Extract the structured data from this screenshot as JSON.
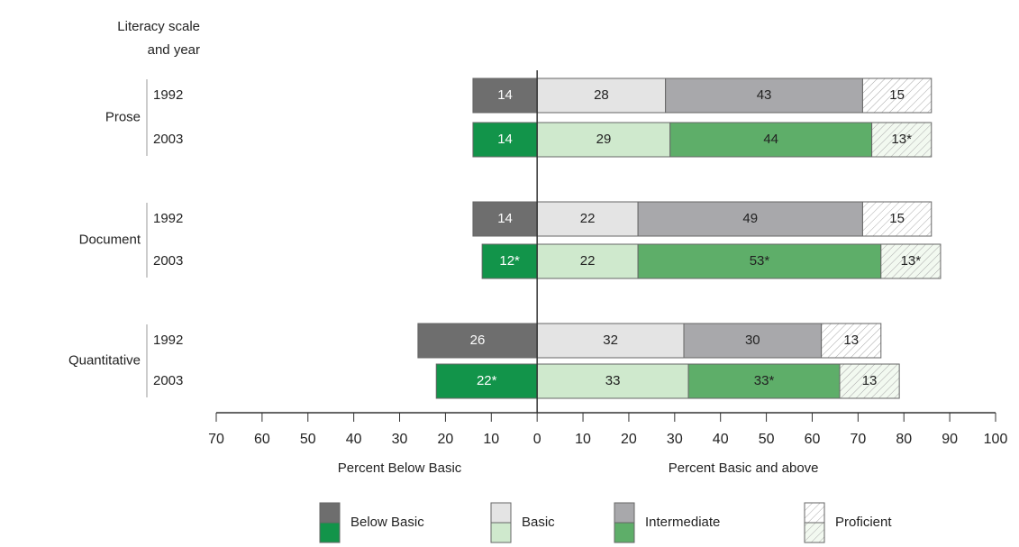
{
  "chart_data": {
    "type": "diverging-stacked-bar",
    "header": [
      "Literacy scale",
      "and year"
    ],
    "groups": [
      {
        "name": "Prose",
        "years": [
          "1992",
          "2003"
        ]
      },
      {
        "name": "Document",
        "years": [
          "1992",
          "2003"
        ]
      },
      {
        "name": "Quantitative",
        "years": [
          "1992",
          "2003"
        ]
      }
    ],
    "series": [
      {
        "name": "Below Basic",
        "side": "left",
        "colors": [
          "#6e6e6e",
          "#12944a"
        ],
        "text_color": "#ffffff",
        "values": [
          14,
          14,
          14,
          12,
          26,
          22
        ],
        "value_labels": [
          "14",
          "14",
          "14",
          "12*",
          "26",
          "22*"
        ]
      },
      {
        "name": "Basic",
        "side": "right",
        "colors": [
          "#e4e4e4",
          "#cfe9cd"
        ],
        "text_color": "#222222",
        "values": [
          28,
          29,
          22,
          22,
          32,
          33
        ],
        "value_labels": [
          "28",
          "29",
          "22",
          "22",
          "32",
          "33"
        ]
      },
      {
        "name": "Intermediate",
        "side": "right",
        "colors": [
          "#a8a8ab",
          "#5eae69"
        ],
        "text_color": "#222222",
        "values": [
          43,
          44,
          49,
          53,
          30,
          33
        ],
        "value_labels": [
          "43",
          "44",
          "49",
          "53*",
          "30",
          "33*"
        ]
      },
      {
        "name": "Proficient",
        "side": "right",
        "colors": [
          "#ffffff",
          "#f2f9f0"
        ],
        "text_color": "#222222",
        "hatched": true,
        "values": [
          15,
          13,
          15,
          13,
          13,
          13
        ],
        "value_labels": [
          "15",
          "13*",
          "15",
          "13*",
          "13",
          "13"
        ]
      }
    ],
    "xlim": [
      -70,
      100
    ],
    "xticks": [
      {
        "value": -70,
        "label": "70"
      },
      {
        "value": -60,
        "label": "60"
      },
      {
        "value": -50,
        "label": "50"
      },
      {
        "value": -40,
        "label": "40"
      },
      {
        "value": -30,
        "label": "30"
      },
      {
        "value": -20,
        "label": "20"
      },
      {
        "value": -10,
        "label": "10"
      },
      0,
      10,
      20,
      30,
      40,
      50,
      60,
      70,
      80,
      90,
      100
    ],
    "x_axis_title_left": "Percent Below Basic",
    "x_axis_title_right": "Percent Basic and above"
  }
}
